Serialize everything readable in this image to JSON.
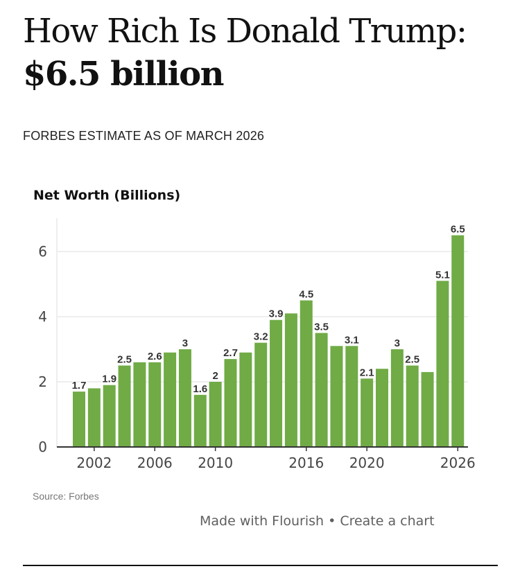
{
  "header": {
    "title_main": "How Rich Is Donald Trump:",
    "title_amount": "$6.5 billion",
    "subtitle": "FORBES ESTIMATE AS OF MARCH 2026"
  },
  "footer": {
    "made_with": "Made with Flourish",
    "separator": "•",
    "create": "Create a chart"
  },
  "colors": {
    "bar": "#70ab46",
    "grid": "#e8e8e8",
    "axis": "#333333",
    "label": "#333333"
  },
  "chart_data": {
    "type": "bar",
    "title": "",
    "ylabel": "Net Worth (Billions)",
    "xlabel": "",
    "source": "Source: Forbes",
    "ylim": [
      0,
      7
    ],
    "yticks": [
      0,
      2,
      4,
      6
    ],
    "xtick_labels": [
      "2002",
      "2006",
      "2010",
      "2016",
      "2020",
      "2026"
    ],
    "grid": true,
    "years": [
      2001,
      2002,
      2003,
      2004,
      2005,
      2006,
      2007,
      2008,
      2009,
      2010,
      2011,
      2012,
      2013,
      2014,
      2015,
      2016,
      2017,
      2018,
      2019,
      2020,
      2021,
      2022,
      2023,
      2024,
      2025,
      2026
    ],
    "values": [
      1.7,
      1.8,
      1.9,
      2.5,
      2.6,
      2.6,
      2.9,
      3.0,
      1.6,
      2.0,
      2.7,
      2.9,
      3.2,
      3.9,
      4.1,
      4.5,
      3.5,
      3.1,
      3.1,
      2.1,
      2.4,
      3.0,
      2.5,
      2.3,
      5.1,
      6.5
    ],
    "data_labels": [
      "1.7",
      "",
      "1.9",
      "2.5",
      "",
      "2.6",
      "",
      "3",
      "1.6",
      "2",
      "2.7",
      "",
      "3.2",
      "3.9",
      "",
      "4.5",
      "3.5",
      "",
      "3.1",
      "2.1",
      "",
      "3",
      "2.5",
      "",
      "5.1",
      "6.5"
    ]
  }
}
